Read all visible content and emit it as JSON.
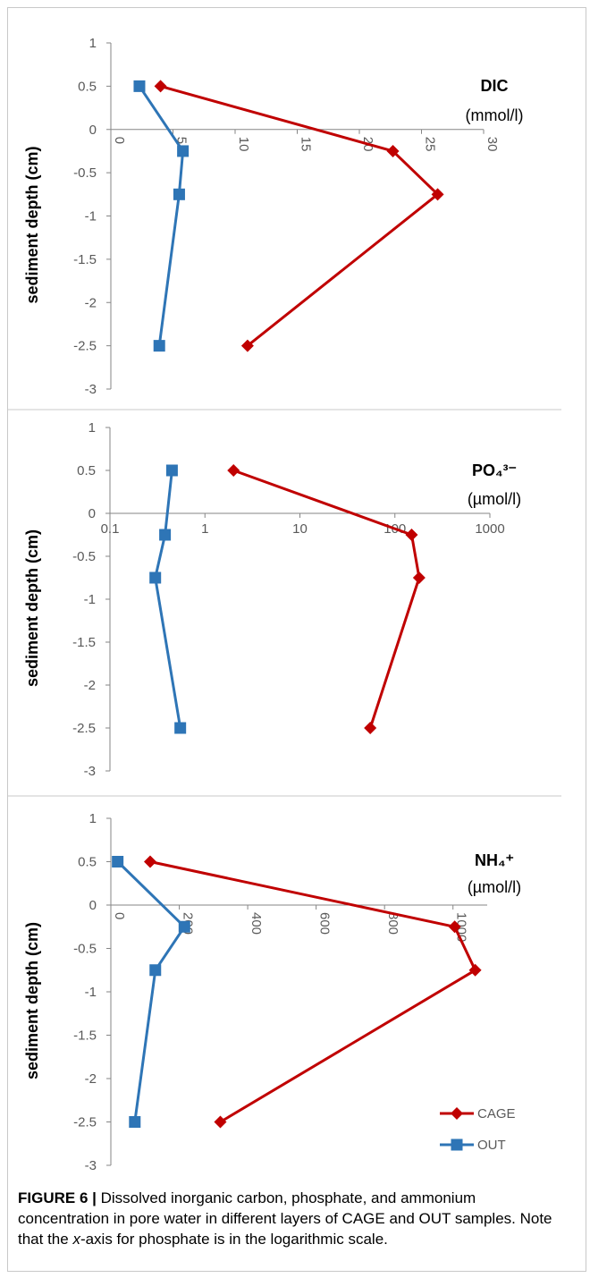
{
  "chart_data": [
    {
      "type": "line",
      "title": "DIC",
      "unit": "(mmol/l)",
      "ylabel": "sediment depth (cm)",
      "x_scale": "linear",
      "xlim": [
        0,
        30
      ],
      "ylim": [
        -3,
        1
      ],
      "x_ticks": [
        "0",
        "5",
        "10",
        "15",
        "20",
        "25",
        "30"
      ],
      "y_ticks": [
        "1",
        "0.5",
        "0",
        "-0.5",
        "-1",
        "-1.5",
        "-2",
        "-2.5",
        "-3"
      ],
      "series": [
        {
          "name": "CAGE",
          "color": "#c00000",
          "marker": "diamond",
          "points": [
            [
              4,
              0.5
            ],
            [
              22.7,
              -0.25
            ],
            [
              26.3,
              -0.75
            ],
            [
              11,
              -2.5
            ]
          ]
        },
        {
          "name": "OUT",
          "color": "#2e75b6",
          "marker": "square",
          "points": [
            [
              2.3,
              0.5
            ],
            [
              5.8,
              -0.25
            ],
            [
              5.5,
              -0.75
            ],
            [
              3.9,
              -2.5
            ]
          ]
        }
      ]
    },
    {
      "type": "line",
      "title": "PO₄³⁻",
      "unit": "(µmol/l)",
      "ylabel": "sediment depth (cm)",
      "x_scale": "log",
      "xlim": [
        0.1,
        1000
      ],
      "ylim": [
        -3,
        1
      ],
      "x_ticks": [
        "0.1",
        "1",
        "10",
        "100",
        "1000"
      ],
      "y_ticks": [
        "1",
        "0.5",
        "0",
        "-0.5",
        "-1",
        "-1.5",
        "-2",
        "-2.5",
        "-3"
      ],
      "series": [
        {
          "name": "CAGE",
          "color": "#c00000",
          "marker": "diamond",
          "points": [
            [
              2,
              0.5
            ],
            [
              150,
              -0.25
            ],
            [
              180,
              -0.75
            ],
            [
              55,
              -2.5
            ]
          ]
        },
        {
          "name": "OUT",
          "color": "#2e75b6",
          "marker": "square",
          "points": [
            [
              0.45,
              0.5
            ],
            [
              0.38,
              -0.25
            ],
            [
              0.3,
              -0.75
            ],
            [
              0.55,
              -2.5
            ]
          ]
        }
      ]
    },
    {
      "type": "line",
      "title": "NH₄⁺",
      "unit": "(µmol/l)",
      "ylabel": "sediment depth (cm)",
      "x_scale": "linear",
      "xlim": [
        0,
        1100
      ],
      "ylim": [
        -3,
        1
      ],
      "x_ticks": [
        "0",
        "200",
        "400",
        "600",
        "800",
        "1000"
      ],
      "y_ticks": [
        "1",
        "0.5",
        "0",
        "-0.5",
        "-1",
        "-1.5",
        "-2",
        "-2.5",
        "-3"
      ],
      "series": [
        {
          "name": "CAGE",
          "color": "#c00000",
          "marker": "diamond",
          "points": [
            [
              115,
              0.5
            ],
            [
              1005,
              -0.25
            ],
            [
              1065,
              -0.75
            ],
            [
              320,
              -2.5
            ]
          ]
        },
        {
          "name": "OUT",
          "color": "#2e75b6",
          "marker": "square",
          "points": [
            [
              20,
              0.5
            ],
            [
              215,
              -0.25
            ],
            [
              130,
              -0.75
            ],
            [
              70,
              -2.5
            ]
          ]
        }
      ]
    }
  ],
  "legend": {
    "placement": "bottom-right",
    "items": [
      {
        "label": "CAGE",
        "color": "#c00000",
        "marker": "diamond"
      },
      {
        "label": "OUT",
        "color": "#2e75b6",
        "marker": "square"
      }
    ]
  },
  "caption": {
    "figure_label": "FIGURE 6 |",
    "text_1": " Dissolved inorganic carbon, phosphate, and ammonium concentration in pore water in different layers of CAGE and OUT samples. Note that the ",
    "emphasis": "x",
    "text_2": "-axis for phosphate is in the logarithmic scale."
  }
}
